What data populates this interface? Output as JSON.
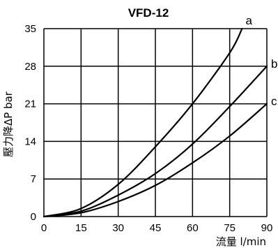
{
  "chart_data": {
    "type": "line",
    "title": "VFD-12",
    "xlabel": "流量 l/min",
    "ylabel": "壓力降ΔP bar",
    "xlim": [
      0,
      90
    ],
    "ylim": [
      0,
      35
    ],
    "xticks": [
      "0",
      "15",
      "30",
      "45",
      "60",
      "75",
      "90"
    ],
    "yticks": [
      "0",
      "7",
      "14",
      "21",
      "28",
      "35"
    ],
    "grid": true,
    "series": [
      {
        "name": "a",
        "x": [
          0,
          15,
          30,
          45,
          60,
          75,
          80
        ],
        "y": [
          0,
          1.5,
          6,
          13,
          21,
          30.5,
          35
        ]
      },
      {
        "name": "b",
        "x": [
          0,
          15,
          30,
          45,
          60,
          75,
          90
        ],
        "y": [
          0,
          1,
          4,
          8,
          13.5,
          20.5,
          28
        ]
      },
      {
        "name": "c",
        "x": [
          0,
          15,
          30,
          45,
          60,
          75,
          90
        ],
        "y": [
          0,
          0.7,
          2.8,
          5.8,
          10,
          15,
          21
        ]
      }
    ],
    "colors": {
      "line": "#000000",
      "grid": "#000000"
    }
  }
}
